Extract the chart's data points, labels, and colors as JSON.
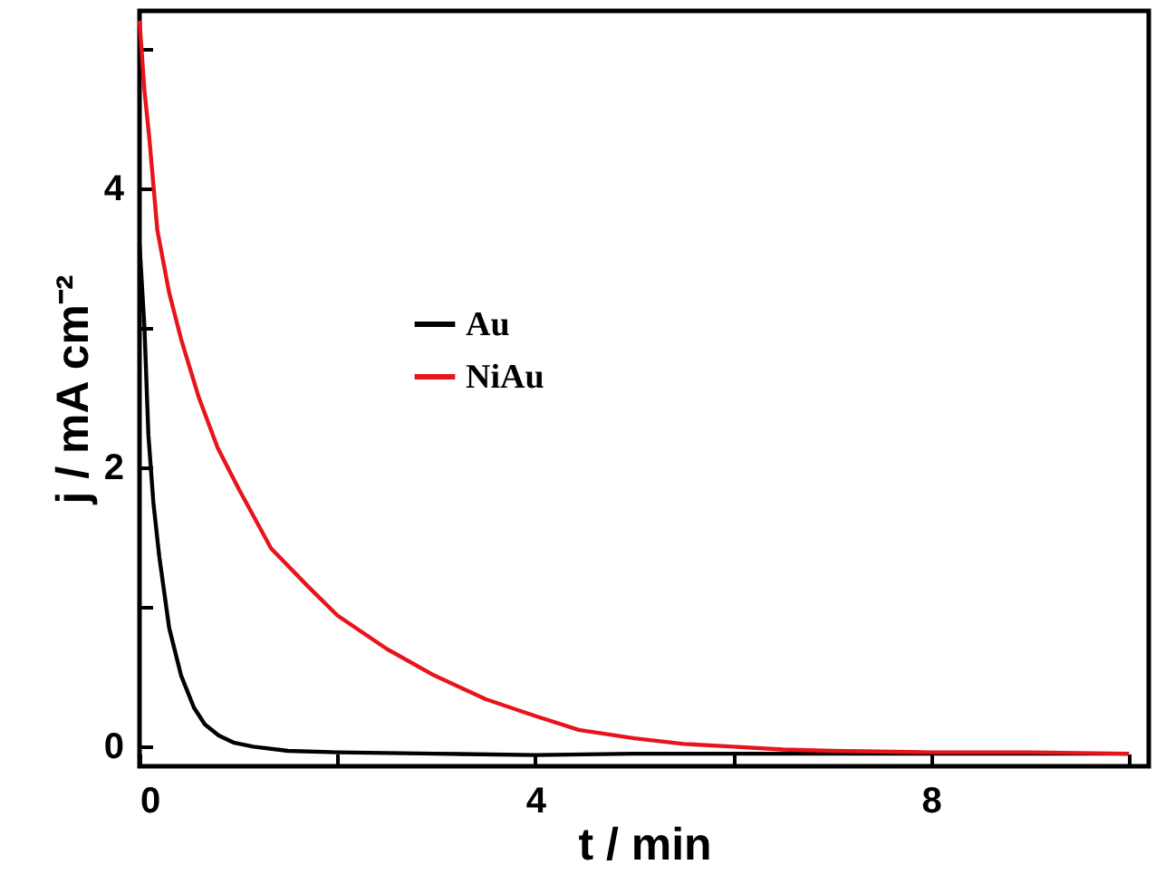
{
  "chart_data": {
    "type": "line",
    "xlabel": "t / min",
    "ylabel": "j / mA cm⁻²",
    "xlim": [
      0,
      10.2
    ],
    "ylim": [
      -0.14,
      5.27
    ],
    "xticks": [
      0,
      {
        "value": 2,
        "label": null
      },
      4,
      {
        "value": 6,
        "label": null
      },
      8,
      {
        "value": 10,
        "label": null
      }
    ],
    "yticks": [
      0,
      {
        "value": 1,
        "label": null
      },
      2,
      {
        "value": 3,
        "label": null
      },
      4,
      {
        "value": 5,
        "label": null
      }
    ],
    "grid": false,
    "legend": "left",
    "line_style": "solid",
    "marker": "none",
    "series": [
      {
        "name": "Au",
        "color": "#000000",
        "x": [
          0,
          0.05,
          0.09,
          0.14,
          0.2,
          0.3,
          0.42,
          0.55,
          0.66,
          0.8,
          0.95,
          1.15,
          1.5,
          2,
          3,
          4,
          5,
          6,
          7,
          8,
          9,
          10
        ],
        "values": [
          3.6,
          3.0,
          2.23,
          1.75,
          1.36,
          0.85,
          0.51,
          0.28,
          0.16,
          0.08,
          0.03,
          0.0,
          -0.03,
          -0.04,
          -0.05,
          -0.06,
          -0.05,
          -0.05,
          -0.05,
          -0.05,
          -0.05,
          -0.05
        ]
      },
      {
        "name": "NiAu",
        "color": "#e8141c",
        "x": [
          0,
          0.05,
          0.1,
          0.18,
          0.3,
          0.42,
          0.6,
          0.79,
          1.0,
          1.33,
          1.7,
          2.0,
          2.5,
          2.98,
          3.5,
          4.0,
          4.44,
          5.0,
          5.5,
          6.0,
          6.5,
          7.0,
          8.0,
          9.0,
          10.0
        ],
        "values": [
          5.2,
          4.7,
          4.35,
          3.7,
          3.25,
          2.92,
          2.5,
          2.14,
          1.85,
          1.42,
          1.15,
          0.94,
          0.7,
          0.51,
          0.34,
          0.22,
          0.12,
          0.06,
          0.02,
          0.0,
          -0.02,
          -0.03,
          -0.04,
          -0.04,
          -0.05
        ]
      }
    ]
  }
}
